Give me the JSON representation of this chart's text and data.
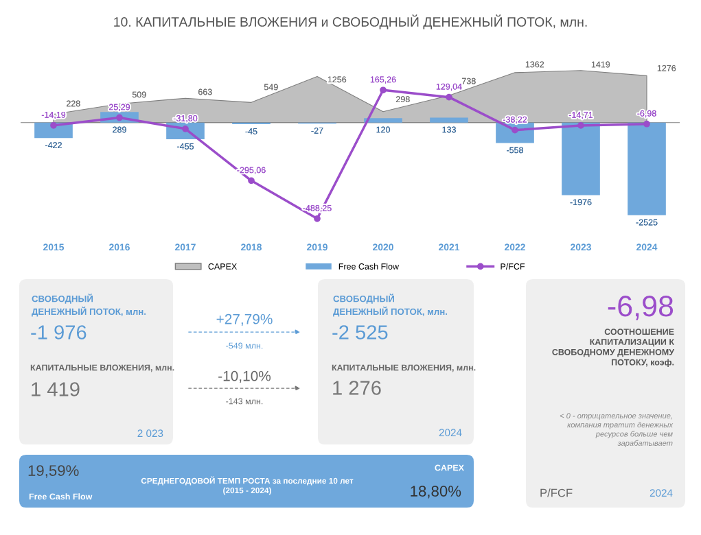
{
  "chart_data": [
    {
      "type": "bar",
      "title": "10. КАПИТАЛЬНЫЕ ВЛОЖЕНИЯ и СВОБОДНЫЙ ДЕНЕЖНЫЙ ПОТОК, млн.",
      "categories": [
        "2015",
        "2016",
        "2017",
        "2018",
        "2019",
        "2020",
        "2021",
        "2022",
        "2023",
        "2024"
      ],
      "legend": "bottom",
      "grid": false,
      "tick_labels": "x",
      "series": [
        {
          "name": "CAPEX",
          "type": "area",
          "color": "#bfbfbf",
          "values": [
            228,
            509,
            663,
            549,
            1256,
            298,
            738,
            1362,
            1419,
            1276
          ],
          "value_labels": [
            "228",
            "509",
            "663",
            "549",
            "1256",
            "298",
            "738",
            "1362",
            "1419",
            "1276"
          ]
        },
        {
          "name": "Free Cash Flow",
          "type": "bar",
          "color": "#6fa8dc",
          "values": [
            -422,
            289,
            -455,
            -45,
            -27,
            120,
            133,
            -558,
            -1976,
            -2525
          ],
          "value_labels": [
            "-422",
            "289",
            "-455",
            "-45",
            "-27",
            "120",
            "133",
            "-558",
            "-1976",
            "-2525"
          ]
        },
        {
          "name": "P/FCF",
          "type": "line",
          "axis": "y2",
          "color": "#9b4dca",
          "marker": "circle",
          "line_style": "solid",
          "values": [
            -14.19,
            25.29,
            -31.8,
            -295.06,
            -488.25,
            165.26,
            129.04,
            -38.22,
            -14.71,
            -6.98
          ],
          "value_labels": [
            "-14,19",
            "25,29",
            "-31,80",
            "-295,06",
            "-488,25",
            "165,26",
            "129,04",
            "-38,22",
            "-14,71",
            "-6,98"
          ]
        }
      ]
    },
    {
      "type": "other",
      "annotations": [
        "СВОБОДНЫЙ\nДЕНЕЖНЫЙ ПОТОК, млн.",
        "-1 976",
        "КАПИТАЛЬНЫЕ ВЛОЖЕНИЯ, млн.",
        "1 419",
        "2 023",
        "+27,79%",
        "-549 млн.",
        "-10,10%",
        "-143 млн.",
        "СВОБОДНЫЙ\nДЕНЕЖНЫЙ ПОТОК, млн.",
        "-2 525",
        "КАПИТАЛЬНЫЕ ВЛОЖЕНИЯ, млн.",
        "1 276",
        "2024",
        "-6,98",
        "СООТНОШЕНИЕ\nКАПИТАЛИЗАЦИИ К\nСВОБОДНОМУ ДЕНЕЖНОМУ\nПОТОКУ, коэф.",
        "< 0 - отрицательное значение,\nкомпания тратит денежных\nресурсов больше чем\nзарабатывает",
        "P/FCF",
        "2024",
        "19,59%",
        "Free Cash Flow",
        "СРЕДНЕГОДОВОЙ ТЕМП РОСТА за последние 10 лет\n(2015 - 2024)",
        "CAPEX",
        "18,80%"
      ]
    }
  ]
}
